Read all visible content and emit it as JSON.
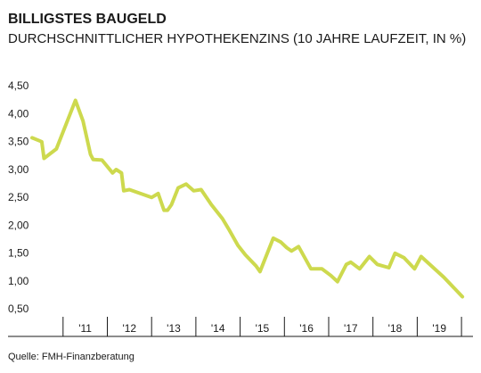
{
  "colors": {
    "series": "#cdd94e",
    "text": "#1a1a1a",
    "axis": "#1a1a1a",
    "background": "#ffffff"
  },
  "chart_data": {
    "type": "line",
    "title": "BILLIGSTES BAUGELD",
    "subtitle": "DURCHSCHNITTLICHER HYPOTHEKENZINS (10 JAHRE LAUFZEIT, IN %)",
    "xlabel": "",
    "ylabel": "",
    "source": "Quelle: FMH-Finanzberatung",
    "grid": false,
    "legend": "none",
    "ylim": [
      0.5,
      4.5
    ],
    "xlim": [
      2010.0,
      2019.9
    ],
    "y_ticks": [
      0.5,
      1.0,
      1.5,
      2.0,
      2.5,
      3.0,
      3.5,
      4.0,
      4.5
    ],
    "y_tick_labels": [
      "0,50",
      "1,00",
      "1,50",
      "2,00",
      "2,50",
      "3,00",
      "3,50",
      "4,00",
      "4,50"
    ],
    "x_year_boundaries": [
      2010.7,
      2011.7,
      2012.7,
      2013.7,
      2014.7,
      2015.7,
      2016.7,
      2017.7,
      2018.7,
      2019.7
    ],
    "x_tick_labels": [
      {
        "label": "'11",
        "x": 2011.2
      },
      {
        "label": "'12",
        "x": 2012.2
      },
      {
        "label": "'13",
        "x": 2013.2
      },
      {
        "label": "'14",
        "x": 2014.2
      },
      {
        "label": "'15",
        "x": 2015.2
      },
      {
        "label": "'16",
        "x": 2016.2
      },
      {
        "label": "'17",
        "x": 2017.2
      },
      {
        "label": "'18",
        "x": 2018.2
      },
      {
        "label": "'19",
        "x": 2019.2
      }
    ],
    "series": [
      {
        "x": [
          2010.0,
          2010.22,
          2010.27,
          2010.55,
          2010.98,
          2011.15,
          2011.32,
          2011.38,
          2011.58,
          2011.82,
          2011.9,
          2012.02,
          2012.07,
          2012.2,
          2012.7,
          2012.85,
          2012.98,
          2013.06,
          2013.15,
          2013.3,
          2013.48,
          2013.65,
          2013.82,
          2014.05,
          2014.3,
          2014.45,
          2014.65,
          2014.82,
          2015.06,
          2015.15,
          2015.45,
          2015.62,
          2015.75,
          2015.86,
          2016.02,
          2016.3,
          2016.55,
          2016.75,
          2016.9,
          2017.1,
          2017.2,
          2017.4,
          2017.62,
          2017.8,
          2018.06,
          2018.2,
          2018.4,
          2018.64,
          2018.79,
          2019.3,
          2019.72
        ],
        "y": [
          3.55,
          3.48,
          3.18,
          3.35,
          4.22,
          3.85,
          3.25,
          3.16,
          3.15,
          2.92,
          2.98,
          2.92,
          2.6,
          2.62,
          2.48,
          2.55,
          2.25,
          2.25,
          2.35,
          2.65,
          2.72,
          2.6,
          2.62,
          2.35,
          2.1,
          1.9,
          1.62,
          1.45,
          1.25,
          1.15,
          1.75,
          1.68,
          1.58,
          1.52,
          1.6,
          1.2,
          1.2,
          1.08,
          0.97,
          1.28,
          1.32,
          1.2,
          1.42,
          1.28,
          1.22,
          1.48,
          1.4,
          1.2,
          1.42,
          1.05,
          0.7
        ]
      }
    ]
  }
}
